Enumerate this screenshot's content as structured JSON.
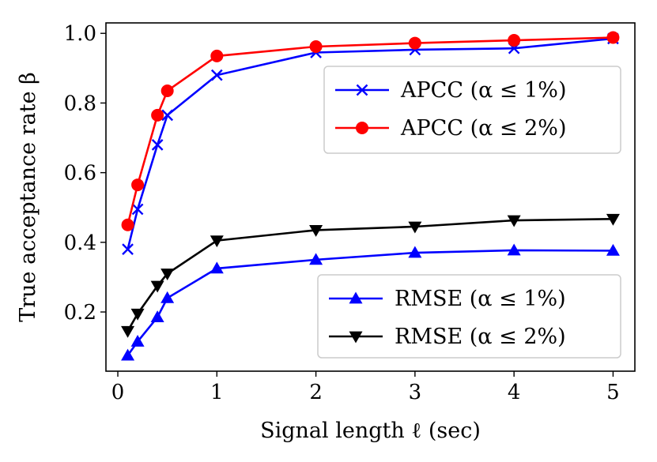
{
  "chart_data": {
    "type": "line",
    "title": "",
    "xlabel": "Signal length ℓ (sec)",
    "ylabel": "True acceptance rate β",
    "xlim": [
      -0.12,
      5.22
    ],
    "ylim": [
      0.03,
      1.03
    ],
    "xticks": [
      0,
      1,
      2,
      3,
      4,
      5
    ],
    "yticks": [
      0.2,
      0.4,
      0.6,
      0.8,
      1.0
    ],
    "xtick_labels": [
      "0",
      "1",
      "2",
      "3",
      "4",
      "5"
    ],
    "ytick_labels": [
      "0.2",
      "0.4",
      "0.6",
      "0.8",
      "1.0"
    ],
    "grid": false,
    "x": [
      0.1,
      0.2,
      0.4,
      0.5,
      1,
      2,
      3,
      4,
      5
    ],
    "series": [
      {
        "name": "APCC (α ≤ 1%)",
        "color": "#0000ff",
        "marker": "x",
        "values": [
          0.38,
          0.495,
          0.68,
          0.765,
          0.88,
          0.945,
          0.953,
          0.957,
          0.985
        ]
      },
      {
        "name": "APCC (α ≤ 2%)",
        "color": "#ff0000",
        "marker": "circle",
        "values": [
          0.45,
          0.565,
          0.765,
          0.835,
          0.935,
          0.962,
          0.972,
          0.98,
          0.988
        ]
      },
      {
        "name": "RMSE (α ≤ 1%)",
        "color": "#0000ff",
        "marker": "triangle-up",
        "values": [
          0.075,
          0.115,
          0.185,
          0.24,
          0.325,
          0.35,
          0.37,
          0.377,
          0.376
        ]
      },
      {
        "name": "RMSE (α ≤ 2%)",
        "color": "#000000",
        "marker": "triangle-down",
        "values": [
          0.145,
          0.195,
          0.275,
          0.31,
          0.405,
          0.435,
          0.445,
          0.463,
          0.467
        ]
      }
    ],
    "legends": [
      {
        "placement": "upper-right",
        "entries": [
          "APCC (α ≤ 1%)",
          "APCC (α ≤ 2%)"
        ]
      },
      {
        "placement": "lower-right",
        "entries": [
          "RMSE (α ≤ 1%)",
          "RMSE (α ≤ 2%)"
        ]
      }
    ]
  }
}
